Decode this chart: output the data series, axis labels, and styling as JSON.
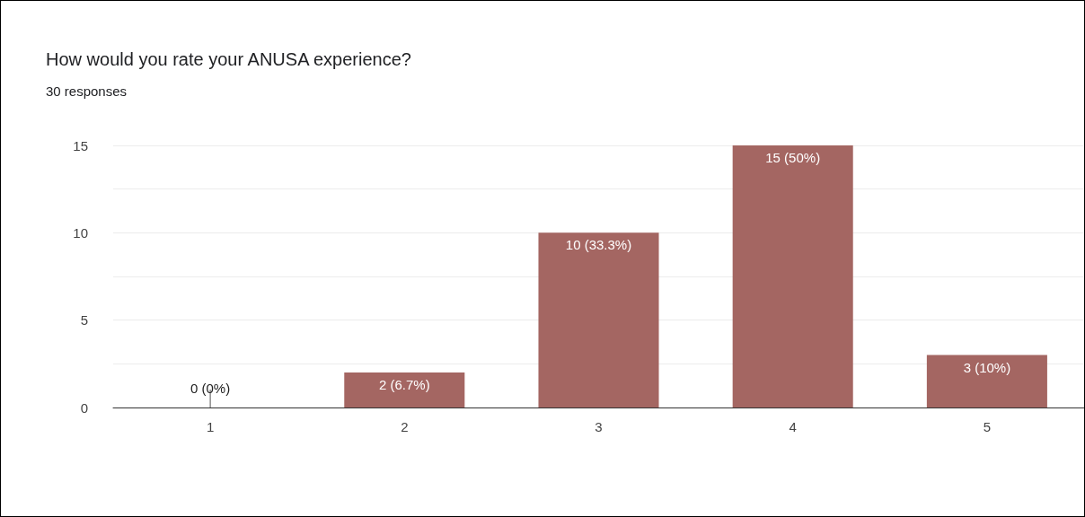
{
  "chart_data": {
    "type": "bar",
    "title": "How would you rate your ANUSA experience?",
    "subtitle": "30 responses",
    "categories": [
      "1",
      "2",
      "3",
      "4",
      "5"
    ],
    "values": [
      0,
      2,
      10,
      15,
      3
    ],
    "value_labels": [
      "0 (0%)",
      "2 (6.7%)",
      "10 (33.3%)",
      "15 (50%)",
      "3 (10%)"
    ],
    "color": "#a46662",
    "ylim": [
      0,
      15
    ],
    "yticks": [
      0,
      {
        "value": 2.5,
        "label": null
      },
      5,
      {
        "value": 7.5,
        "label": null
      },
      10,
      {
        "value": 12.5,
        "label": null
      },
      15
    ],
    "grid": "y"
  }
}
